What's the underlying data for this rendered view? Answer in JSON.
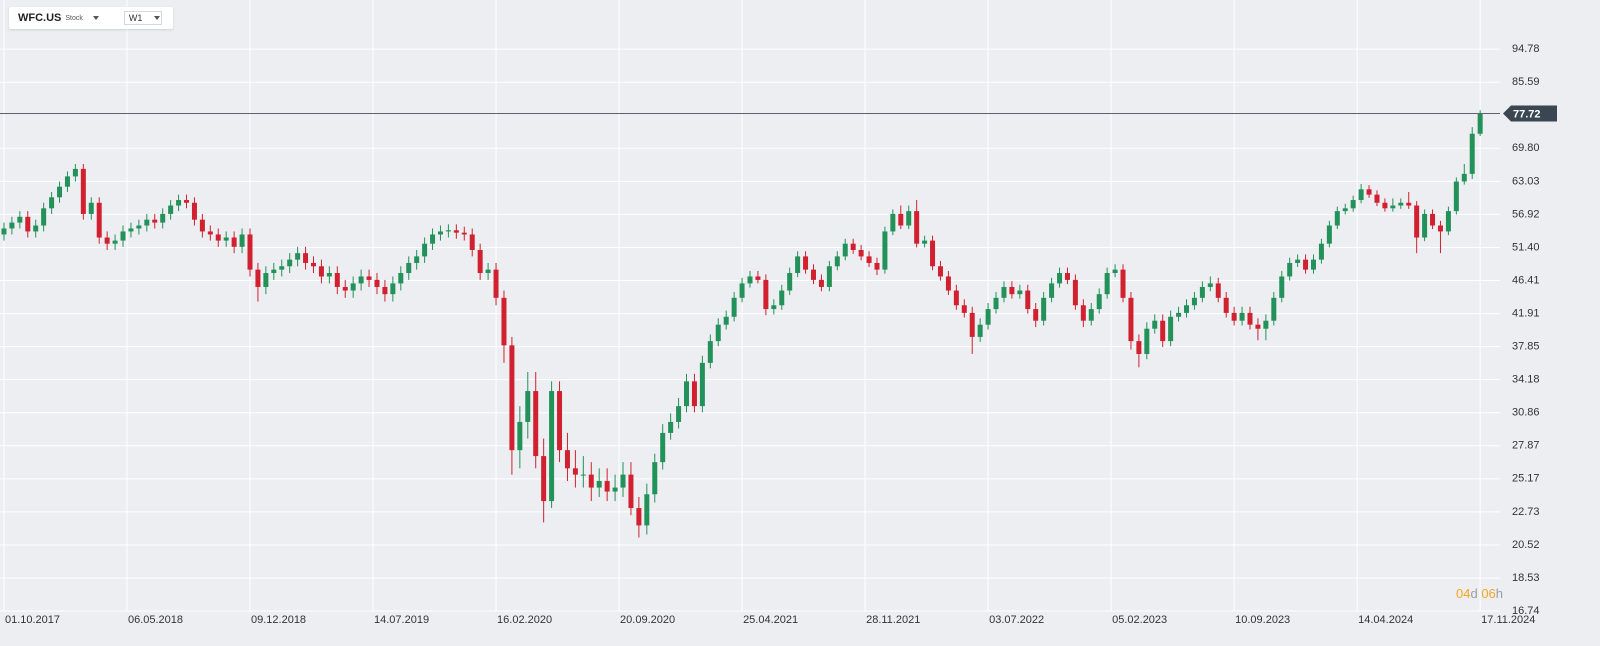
{
  "toolbar": {
    "symbol": "WFC.US",
    "asset_type": "Stock",
    "timeframe": "W1"
  },
  "countdown": {
    "days": "04",
    "days_unit": "d",
    "hours": "06",
    "hours_unit": "h"
  },
  "chart_data": {
    "type": "candlestick",
    "log_scale": true,
    "grid": true,
    "up_color": "#23925a",
    "down_color": "#d12130",
    "current_price": 77.72,
    "xlim": [
      -1,
      377
    ],
    "ylim": [
      16.74,
      110.3
    ],
    "xticks": [
      {
        "value": 0,
        "label": "01.10.2017"
      },
      {
        "value": 31,
        "label": "06.05.2018"
      },
      {
        "value": 62,
        "label": "09.12.2018"
      },
      {
        "value": 93,
        "label": "14.07.2019"
      },
      {
        "value": 124,
        "label": "16.02.2020"
      },
      {
        "value": 155,
        "label": "20.09.2020"
      },
      {
        "value": 186,
        "label": "25.04.2021"
      },
      {
        "value": 217,
        "label": "28.11.2021"
      },
      {
        "value": 248,
        "label": "03.07.2022"
      },
      {
        "value": 279,
        "label": "05.02.2023"
      },
      {
        "value": 310,
        "label": "10.09.2023"
      },
      {
        "value": 341,
        "label": "14.04.2024"
      },
      {
        "value": 372,
        "label": "17.11.2024"
      }
    ],
    "yticks": [
      94.78,
      85.59,
      {
        "value": 69.8,
        "label": "69.80"
      },
      63.03,
      56.92,
      {
        "value": 51.4,
        "label": "51.40"
      },
      46.41,
      41.91,
      37.85,
      34.18,
      30.86,
      27.87,
      25.17,
      22.73,
      20.52,
      18.53,
      16.74
    ],
    "x": [
      0,
      2,
      4,
      6,
      8,
      10,
      12,
      14,
      16,
      18,
      20,
      22,
      24,
      26,
      28,
      30,
      32,
      34,
      36,
      38,
      40,
      42,
      44,
      46,
      48,
      50,
      52,
      54,
      56,
      58,
      60,
      62,
      64,
      66,
      68,
      70,
      72,
      74,
      76,
      78,
      80,
      82,
      84,
      86,
      88,
      90,
      92,
      94,
      96,
      98,
      100,
      102,
      104,
      106,
      108,
      110,
      112,
      114,
      116,
      118,
      120,
      122,
      124,
      126,
      128,
      130,
      132,
      134,
      136,
      138,
      140,
      142,
      144,
      146,
      148,
      150,
      152,
      154,
      156,
      158,
      160,
      162,
      164,
      166,
      168,
      170,
      172,
      174,
      176,
      178,
      180,
      182,
      184,
      186,
      188,
      190,
      192,
      194,
      196,
      198,
      200,
      202,
      204,
      206,
      208,
      210,
      212,
      214,
      216,
      218,
      220,
      222,
      224,
      226,
      228,
      230,
      232,
      234,
      236,
      238,
      240,
      242,
      244,
      246,
      248,
      250,
      252,
      254,
      256,
      258,
      260,
      262,
      264,
      266,
      268,
      270,
      272,
      274,
      276,
      278,
      280,
      282,
      284,
      286,
      288,
      290,
      292,
      294,
      296,
      298,
      300,
      302,
      304,
      306,
      308,
      310,
      312,
      314,
      316,
      318,
      320,
      322,
      324,
      326,
      328,
      330,
      332,
      334,
      336,
      338,
      340,
      342,
      344,
      346,
      348,
      350,
      352,
      354,
      356,
      358,
      360,
      362,
      364,
      366,
      368,
      370,
      372
    ],
    "open": [
      53.5,
      54.5,
      55.5,
      56.5,
      54,
      55,
      58,
      60,
      62,
      64,
      65.5,
      57,
      59,
      53,
      52,
      52.5,
      54,
      54.5,
      55,
      56,
      55.5,
      57,
      58.5,
      59.5,
      59,
      56,
      54,
      53.5,
      52.5,
      53,
      51.5,
      53.5,
      48,
      45.5,
      47.5,
      48,
      48.5,
      49.5,
      50.5,
      49,
      48.5,
      47,
      47.5,
      45.5,
      45,
      46,
      47,
      46.5,
      45.5,
      44.5,
      46,
      47.5,
      49,
      50,
      52,
      53.5,
      54,
      54.2,
      53.8,
      53.5,
      51,
      47.5,
      48,
      44,
      38,
      27.5,
      30,
      33,
      27,
      23.5,
      33,
      27.5,
      26,
      25.5,
      25.5,
      24.5,
      25,
      24.2,
      24.5,
      25.5,
      23,
      21.8,
      24,
      26.5,
      29,
      30,
      31.5,
      34,
      31.5,
      36,
      38.5,
      40.5,
      41.5,
      44,
      46,
      47,
      46.5,
      42.5,
      43,
      45,
      47.5,
      50,
      48,
      46.5,
      45.5,
      48.5,
      50,
      52,
      51,
      50,
      49,
      48,
      54,
      57,
      55,
      57.5,
      52,
      52.5,
      48.5,
      47,
      45,
      43,
      42,
      39,
      40.5,
      42.5,
      44,
      45.5,
      44.5,
      45,
      42.5,
      41,
      44,
      46,
      47.5,
      46.5,
      43,
      41,
      42.5,
      44.5,
      47.5,
      48,
      44,
      38.5,
      37,
      40,
      41,
      38.5,
      41.5,
      42,
      43,
      44,
      45.5,
      46,
      44,
      42,
      41,
      42,
      40.5,
      40,
      41,
      44,
      47,
      49,
      49.5,
      48,
      49.5,
      52,
      55,
      57.5,
      58,
      59.5,
      61.5,
      60.5,
      59,
      58,
      58.5,
      59,
      58.5,
      53,
      57,
      55,
      54,
      57.5,
      63,
      64.5,
      73
    ],
    "high": [
      55.5,
      56.5,
      57.5,
      57.5,
      56,
      59,
      61,
      63,
      65,
      66.5,
      66.5,
      60,
      60,
      54,
      53.5,
      55,
      55.5,
      56,
      57,
      57,
      58,
      59.5,
      60.5,
      60.5,
      60,
      57,
      55,
      54.5,
      54,
      54,
      54.5,
      54.5,
      49,
      48.5,
      49,
      49.5,
      50.5,
      51.5,
      51.5,
      50,
      49.5,
      48.5,
      48.5,
      46.5,
      47,
      48,
      48,
      47.5,
      46.5,
      47,
      48.5,
      50,
      51,
      53,
      54.5,
      55,
      55.2,
      55.2,
      54.8,
      54.5,
      52,
      49,
      49,
      45,
      39,
      31.5,
      35,
      35,
      28.5,
      34,
      34,
      29,
      27.5,
      27,
      26.5,
      26,
      26,
      25.5,
      26.5,
      26.5,
      23.8,
      24.8,
      27.2,
      29.8,
      30.8,
      32.3,
      34.8,
      34.8,
      36.8,
      39.3,
      41.3,
      42.3,
      44.8,
      46.8,
      47.8,
      47.8,
      47.3,
      43.8,
      45.8,
      48.3,
      50.8,
      50.8,
      48.8,
      47.3,
      49.3,
      50.8,
      52.8,
      52.8,
      51.8,
      50.8,
      49.8,
      54.8,
      57.8,
      58.5,
      58.5,
      59.5,
      53.3,
      53.3,
      49.3,
      47.8,
      45.8,
      43.8,
      42.8,
      41.3,
      43.3,
      44.8,
      46.3,
      46.3,
      45.8,
      45.8,
      43.3,
      44.8,
      46.8,
      48.3,
      48.3,
      47.3,
      43.8,
      43.3,
      45.3,
      48.3,
      48.8,
      48.8,
      44.8,
      39.3,
      40.8,
      41.8,
      41.8,
      42.3,
      42.8,
      43.8,
      44.8,
      46.3,
      47,
      46.8,
      44.8,
      42.8,
      42.8,
      42.8,
      41.3,
      41.8,
      44.8,
      47.8,
      49.8,
      50.3,
      50.3,
      50.3,
      52.8,
      55.8,
      58.3,
      58.8,
      60.3,
      62.5,
      62.3,
      61.3,
      59.8,
      59.8,
      59.8,
      61,
      59.3,
      57.8,
      57.8,
      55.8,
      58.3,
      63.8,
      66.5,
      74.5,
      78.5
    ],
    "low": [
      52.5,
      53.5,
      54.5,
      53,
      53,
      54,
      57,
      59,
      61,
      63,
      56,
      56,
      52,
      51,
      51,
      51.5,
      53,
      53.5,
      54,
      54.5,
      54.5,
      56,
      57.5,
      58,
      55,
      53,
      52.5,
      51.5,
      51.5,
      50.5,
      50.5,
      47,
      43.5,
      44.5,
      46.5,
      47,
      47.5,
      48.5,
      48,
      47.5,
      46,
      46,
      44.5,
      44,
      44,
      45,
      45.5,
      44.5,
      43.5,
      43.5,
      45,
      46.5,
      48,
      49,
      51,
      52.5,
      53,
      52.8,
      52.5,
      50,
      46.5,
      46.5,
      43,
      36,
      25.5,
      26,
      28.5,
      26,
      22,
      23,
      26.5,
      25,
      24.5,
      24.5,
      23.5,
      23.8,
      23.5,
      23.5,
      23.8,
      22.5,
      21,
      21.2,
      23.4,
      25.9,
      28.4,
      29.4,
      30.9,
      30.9,
      30.9,
      35.4,
      37.9,
      39.9,
      40.9,
      43.4,
      45.4,
      46,
      41.7,
      41.8,
      42.4,
      44.4,
      46.9,
      47.4,
      45.9,
      44.9,
      44.9,
      47.9,
      49.4,
      50.4,
      49.4,
      48.4,
      47.2,
      47.4,
      53.4,
      54.4,
      54.4,
      51.4,
      51.4,
      47.9,
      46.4,
      44.4,
      42.4,
      41.4,
      37,
      38.4,
      39.9,
      41.9,
      43.4,
      43.9,
      43.9,
      41.9,
      40.2,
      40.4,
      43.4,
      45.4,
      45.9,
      42.4,
      40.2,
      40.4,
      41.9,
      43.9,
      46.9,
      43.4,
      37.5,
      35.5,
      36.4,
      39.4,
      37.8,
      37.9,
      40.9,
      41.4,
      42.4,
      43.4,
      44.9,
      43.4,
      41.4,
      40.4,
      40.4,
      39.9,
      38.6,
      38.6,
      40.4,
      43.4,
      46.4,
      48.4,
      47.4,
      47.4,
      48.9,
      51.4,
      54.4,
      56.9,
      57.4,
      58.9,
      59.9,
      58.4,
      57.4,
      57.4,
      57.9,
      57.9,
      50.5,
      52.4,
      54.4,
      50.5,
      53.4,
      56.9,
      62.4,
      63.5,
      72.5
    ],
    "close": [
      54.5,
      55.5,
      56.5,
      54,
      55,
      58,
      60,
      62,
      64,
      65.5,
      57,
      59,
      53,
      52,
      52.5,
      54,
      54.5,
      55,
      56,
      55.5,
      57,
      58.5,
      59.5,
      59,
      56,
      54,
      53.5,
      52.5,
      53,
      51.5,
      53.5,
      48,
      45.5,
      47.5,
      48,
      48.5,
      49.5,
      50.5,
      49,
      48.5,
      47,
      47.5,
      45.5,
      45,
      46,
      47,
      46.5,
      45.5,
      44.5,
      46,
      47.5,
      49,
      50,
      52,
      53.5,
      54,
      54.2,
      53.8,
      53.5,
      51,
      47.5,
      48,
      44,
      38,
      27.5,
      30,
      33,
      27,
      23.5,
      33,
      27.5,
      26,
      25.5,
      25.5,
      24.5,
      25,
      24.2,
      24.5,
      25.5,
      23,
      21.8,
      24,
      26.5,
      29,
      30,
      31.5,
      34,
      31.5,
      36,
      38.5,
      40.5,
      41.5,
      44,
      46,
      47,
      46.5,
      42.5,
      43,
      45,
      47.5,
      50,
      48,
      46.5,
      45.5,
      48.5,
      50,
      52,
      51,
      50,
      49,
      48,
      54,
      57,
      55,
      57.5,
      52,
      52.5,
      48.5,
      47,
      45,
      43,
      42,
      39,
      40.5,
      42.5,
      44,
      45.5,
      44.5,
      45,
      42.5,
      41,
      44,
      46,
      47.5,
      46.5,
      43,
      41,
      42.5,
      44.5,
      47.5,
      48,
      44,
      38.5,
      37,
      40,
      41,
      38.5,
      41.5,
      42,
      43,
      44,
      45.5,
      46,
      44,
      42,
      41,
      42,
      40.5,
      40,
      41,
      44,
      47,
      49,
      49.5,
      48,
      49.5,
      52,
      55,
      57.5,
      58,
      59.5,
      61.5,
      60.5,
      59,
      58,
      58.5,
      59,
      58.5,
      53,
      57,
      55,
      54,
      57.5,
      63,
      64.5,
      73,
      77.72
    ]
  }
}
